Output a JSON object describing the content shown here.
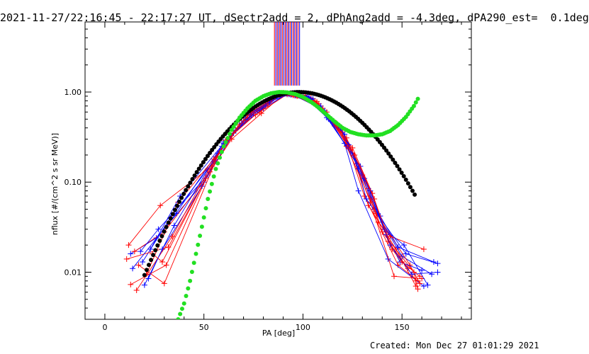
{
  "title": "2021-11-27/22:16:45 - 22:17:27 UT, dSectr2add = 2, dPhAng2add = -4.3deg, dPA290_est=  0.1deg",
  "footer": "Created: Mon Dec 27 01:01:29 2021",
  "chart_data": {
    "type": "line",
    "xlabel": "PA [deg]",
    "ylabel": "nflux [#/(cm^2 s sr MeV)]",
    "xlim": [
      -10,
      185
    ],
    "ylim": [
      0.003,
      6
    ],
    "yscale": "log",
    "x_ticks": [
      0,
      50,
      100,
      150
    ],
    "x_tick_labels": [
      "0",
      "50",
      "100",
      "150"
    ],
    "y_ticks": [
      0.01,
      0.1,
      1.0
    ],
    "y_tick_labels": [
      "0.01",
      "0.10",
      "1.00"
    ],
    "colors": {
      "red": "#ff0000",
      "blue": "#0000ff",
      "black": "#000000",
      "green": "#22e022"
    },
    "vertical_markers": {
      "ymin": 1.18,
      "ymax": 6,
      "x": [
        85.6,
        86.3,
        87.0,
        87.6,
        88.3,
        88.9,
        89.6,
        90.3,
        91.0,
        91.6,
        92.3,
        92.9,
        93.6,
        94.3,
        95.0,
        95.6,
        96.3,
        96.9,
        97.6,
        98.3
      ],
      "colors": [
        "red",
        "blue",
        "red",
        "blue",
        "red",
        "blue",
        "red",
        "blue",
        "red",
        "blue",
        "red",
        "blue",
        "red",
        "blue",
        "red",
        "blue",
        "red",
        "blue",
        "red",
        "blue"
      ]
    },
    "series": [
      {
        "color": "red",
        "x": [
          12,
          28,
          52,
          63,
          77,
          89,
          102,
          115,
          123,
          131,
          148,
          158
        ],
        "y": [
          0.02,
          0.055,
          0.14,
          0.32,
          0.62,
          0.95,
          0.9,
          0.46,
          0.24,
          0.07,
          0.012,
          0.008
        ]
      },
      {
        "color": "blue",
        "x": [
          13,
          26,
          50,
          60,
          75,
          88,
          100,
          113,
          121,
          128,
          143,
          161
        ],
        "y": [
          0.016,
          0.024,
          0.1,
          0.28,
          0.6,
          0.96,
          0.92,
          0.5,
          0.27,
          0.08,
          0.014,
          0.007
        ]
      },
      {
        "color": "red",
        "x": [
          15,
          30,
          53,
          64,
          79,
          91,
          104,
          116,
          125,
          133,
          147,
          157
        ],
        "y": [
          0.017,
          0.028,
          0.13,
          0.3,
          0.58,
          0.97,
          0.86,
          0.42,
          0.21,
          0.055,
          0.018,
          0.007
        ]
      },
      {
        "color": "blue",
        "x": [
          19,
          33,
          55,
          66,
          80,
          92,
          105,
          118,
          126,
          136,
          150,
          165
        ],
        "y": [
          0.013,
          0.04,
          0.17,
          0.38,
          0.66,
          0.95,
          0.84,
          0.4,
          0.2,
          0.05,
          0.015,
          0.0095
        ]
      },
      {
        "color": "red",
        "x": [
          11,
          32,
          51,
          67,
          78,
          90,
          101,
          117,
          124,
          134,
          146,
          160
        ],
        "y": [
          0.014,
          0.019,
          0.11,
          0.4,
          0.6,
          0.98,
          0.92,
          0.45,
          0.23,
          0.06,
          0.009,
          0.0085
        ]
      },
      {
        "color": "blue",
        "x": [
          18,
          27,
          52,
          65,
          81,
          89,
          103,
          114,
          127,
          132,
          152,
          168
        ],
        "y": [
          0.017,
          0.03,
          0.12,
          0.35,
          0.7,
          0.95,
          0.88,
          0.48,
          0.16,
          0.065,
          0.016,
          0.0125
        ]
      },
      {
        "color": "red",
        "x": [
          13,
          31,
          54,
          62,
          76,
          92,
          106,
          119,
          122,
          137,
          154,
          159
        ],
        "y": [
          0.0073,
          0.012,
          0.15,
          0.3,
          0.56,
          0.94,
          0.8,
          0.38,
          0.25,
          0.045,
          0.012,
          0.0075
        ]
      },
      {
        "color": "blue",
        "x": [
          22,
          29,
          49,
          61,
          74,
          90,
          102,
          112,
          129,
          139,
          148,
          166
        ],
        "y": [
          0.0085,
          0.018,
          0.09,
          0.29,
          0.55,
          0.96,
          0.9,
          0.52,
          0.15,
          0.042,
          0.019,
          0.013
        ]
      },
      {
        "color": "red",
        "x": [
          16,
          34,
          56,
          68,
          82,
          88,
          107,
          120,
          130,
          138,
          144,
          161
        ],
        "y": [
          0.0063,
          0.025,
          0.19,
          0.44,
          0.74,
          0.95,
          0.78,
          0.36,
          0.12,
          0.036,
          0.025,
          0.018
        ]
      },
      {
        "color": "blue",
        "x": [
          20,
          35,
          57,
          69,
          83,
          93,
          104,
          121,
          128,
          141,
          151,
          163
        ],
        "y": [
          0.0072,
          0.033,
          0.21,
          0.45,
          0.78,
          0.94,
          0.83,
          0.34,
          0.14,
          0.03,
          0.02,
          0.0072
        ]
      },
      {
        "color": "red",
        "x": [
          17,
          30,
          58,
          70,
          84,
          91,
          108,
          122,
          133,
          140,
          156,
          158
        ],
        "y": [
          0.012,
          0.0075,
          0.22,
          0.48,
          0.82,
          0.96,
          0.74,
          0.31,
          0.085,
          0.028,
          0.01,
          0.0065
        ]
      },
      {
        "color": "blue",
        "x": [
          14,
          36,
          59,
          71,
          85,
          94,
          109,
          119,
          131,
          142,
          149,
          160
        ],
        "y": [
          0.011,
          0.045,
          0.25,
          0.52,
          0.85,
          0.93,
          0.7,
          0.4,
          0.11,
          0.026,
          0.013,
          0.0105
        ]
      },
      {
        "color": "red",
        "x": [
          21,
          37,
          55,
          72,
          86,
          95,
          110,
          125,
          135,
          143,
          153,
          157
        ],
        "y": [
          0.0095,
          0.06,
          0.18,
          0.55,
          0.88,
          0.92,
          0.66,
          0.24,
          0.075,
          0.022,
          0.011,
          0.008
        ]
      },
      {
        "color": "blue",
        "x": [
          23,
          38,
          60,
          73,
          87,
          96,
          111,
          123,
          134,
          144,
          155,
          168
        ],
        "y": [
          0.018,
          0.07,
          0.27,
          0.57,
          0.9,
          0.91,
          0.62,
          0.26,
          0.08,
          0.02,
          0.0095,
          0.01
        ]
      },
      {
        "color": "red",
        "x": [
          24,
          29,
          61,
          74,
          88,
          97,
          112,
          126,
          136,
          145,
          150,
          159
        ],
        "y": [
          0.016,
          0.013,
          0.29,
          0.6,
          0.93,
          0.9,
          0.6,
          0.2,
          0.065,
          0.018,
          0.013,
          0.009
        ]
      }
    ],
    "black_curve": {
      "color": "black",
      "center": 98,
      "sigma": 25.5,
      "peak": 1.0,
      "x_start": 20,
      "x_end": 157
    },
    "green_curve": {
      "color": "green",
      "x": [
        37,
        40,
        43,
        46,
        49,
        52,
        56,
        60,
        64,
        68,
        72,
        76,
        80,
        84,
        88,
        92,
        96,
        100,
        104,
        108,
        112,
        116,
        120,
        124,
        128,
        132,
        136,
        140,
        144,
        148,
        152,
        156,
        159
      ],
      "y": [
        0.003,
        0.0045,
        0.008,
        0.016,
        0.032,
        0.065,
        0.14,
        0.25,
        0.38,
        0.52,
        0.66,
        0.8,
        0.9,
        0.97,
        1.0,
        0.99,
        0.95,
        0.88,
        0.78,
        0.67,
        0.56,
        0.47,
        0.4,
        0.36,
        0.34,
        0.33,
        0.33,
        0.34,
        0.37,
        0.43,
        0.53,
        0.7,
        0.92
      ]
    }
  }
}
